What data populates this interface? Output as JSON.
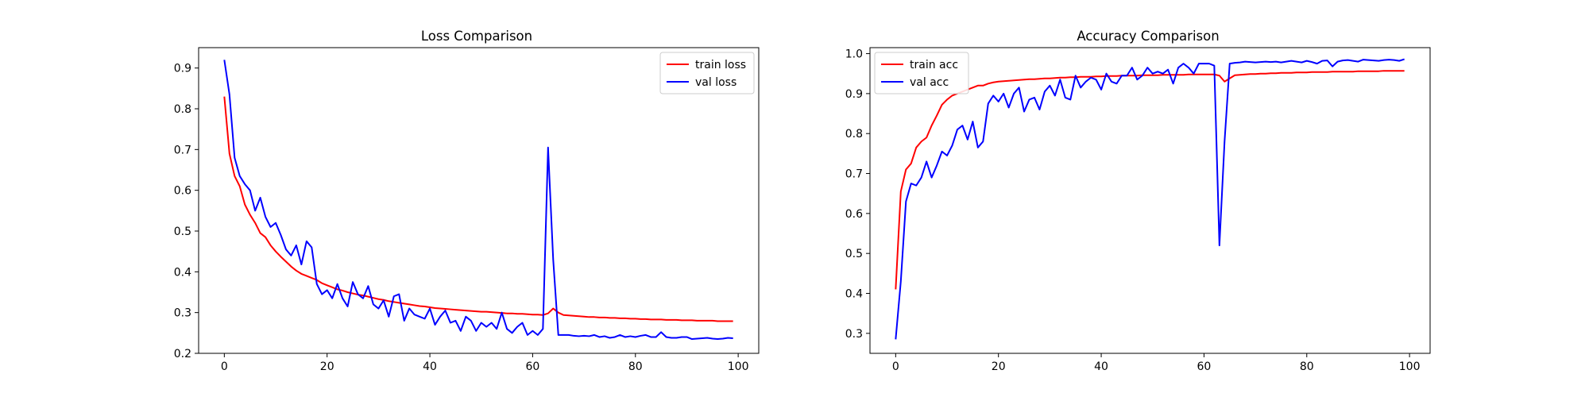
{
  "chart_data": [
    {
      "type": "line",
      "title": "Loss Comparison",
      "xlabel": "",
      "ylabel": "",
      "xlim": [
        -5,
        104
      ],
      "ylim": [
        0.2,
        0.95
      ],
      "xticks": [
        0,
        20,
        40,
        60,
        80,
        100
      ],
      "yticks": [
        0.2,
        0.3,
        0.4,
        0.5,
        0.6,
        0.7,
        0.8,
        0.9
      ],
      "ytick_decimals": 1,
      "legend": "top-right",
      "grid": false,
      "series": [
        {
          "name": "train loss",
          "color": "#ff0000",
          "values": [
            0.83,
            0.69,
            0.635,
            0.61,
            0.565,
            0.54,
            0.52,
            0.495,
            0.485,
            0.465,
            0.45,
            0.437,
            0.425,
            0.413,
            0.403,
            0.395,
            0.39,
            0.385,
            0.38,
            0.372,
            0.367,
            0.362,
            0.357,
            0.354,
            0.35,
            0.347,
            0.344,
            0.342,
            0.339,
            0.336,
            0.333,
            0.331,
            0.328,
            0.326,
            0.324,
            0.322,
            0.32,
            0.318,
            0.316,
            0.315,
            0.313,
            0.311,
            0.31,
            0.309,
            0.308,
            0.307,
            0.306,
            0.305,
            0.304,
            0.303,
            0.302,
            0.302,
            0.301,
            0.3,
            0.299,
            0.298,
            0.298,
            0.297,
            0.297,
            0.296,
            0.295,
            0.295,
            0.294,
            0.298,
            0.31,
            0.3,
            0.294,
            0.293,
            0.292,
            0.291,
            0.29,
            0.289,
            0.289,
            0.288,
            0.288,
            0.287,
            0.287,
            0.286,
            0.286,
            0.285,
            0.285,
            0.284,
            0.284,
            0.283,
            0.283,
            0.283,
            0.282,
            0.282,
            0.282,
            0.281,
            0.281,
            0.281,
            0.28,
            0.28,
            0.28,
            0.28,
            0.279,
            0.279,
            0.279,
            0.279
          ]
        },
        {
          "name": "val loss",
          "color": "#0000ff",
          "values": [
            0.92,
            0.835,
            0.68,
            0.635,
            0.615,
            0.6,
            0.55,
            0.582,
            0.535,
            0.51,
            0.52,
            0.49,
            0.455,
            0.44,
            0.465,
            0.418,
            0.475,
            0.46,
            0.37,
            0.345,
            0.355,
            0.335,
            0.37,
            0.335,
            0.315,
            0.375,
            0.345,
            0.335,
            0.365,
            0.32,
            0.31,
            0.33,
            0.29,
            0.34,
            0.345,
            0.28,
            0.31,
            0.295,
            0.29,
            0.285,
            0.31,
            0.27,
            0.29,
            0.305,
            0.275,
            0.28,
            0.255,
            0.29,
            0.28,
            0.255,
            0.275,
            0.265,
            0.275,
            0.26,
            0.3,
            0.26,
            0.25,
            0.265,
            0.275,
            0.245,
            0.255,
            0.245,
            0.26,
            0.705,
            0.43,
            0.245,
            0.245,
            0.245,
            0.243,
            0.242,
            0.243,
            0.242,
            0.245,
            0.24,
            0.242,
            0.238,
            0.24,
            0.245,
            0.24,
            0.242,
            0.24,
            0.243,
            0.245,
            0.24,
            0.24,
            0.252,
            0.24,
            0.238,
            0.238,
            0.24,
            0.24,
            0.235,
            0.236,
            0.237,
            0.238,
            0.236,
            0.235,
            0.236,
            0.238,
            0.237
          ]
        }
      ]
    },
    {
      "type": "line",
      "title": "Accuracy Comparison",
      "xlabel": "",
      "ylabel": "",
      "xlim": [
        -5,
        104
      ],
      "ylim": [
        0.25,
        1.015
      ],
      "xticks": [
        0,
        20,
        40,
        60,
        80,
        100
      ],
      "yticks": [
        0.3,
        0.4,
        0.5,
        0.6,
        0.7,
        0.8,
        0.9,
        1.0
      ],
      "ytick_decimals": 1,
      "legend": "top-left",
      "grid": false,
      "series": [
        {
          "name": "train acc",
          "color": "#ff0000",
          "values": [
            0.41,
            0.655,
            0.71,
            0.725,
            0.765,
            0.78,
            0.79,
            0.82,
            0.845,
            0.872,
            0.885,
            0.895,
            0.9,
            0.905,
            0.91,
            0.915,
            0.92,
            0.92,
            0.925,
            0.928,
            0.93,
            0.931,
            0.932,
            0.933,
            0.934,
            0.935,
            0.936,
            0.936,
            0.937,
            0.938,
            0.938,
            0.939,
            0.94,
            0.94,
            0.941,
            0.941,
            0.942,
            0.942,
            0.942,
            0.943,
            0.943,
            0.944,
            0.944,
            0.944,
            0.945,
            0.945,
            0.945,
            0.945,
            0.946,
            0.946,
            0.946,
            0.946,
            0.947,
            0.947,
            0.947,
            0.947,
            0.947,
            0.948,
            0.948,
            0.948,
            0.948,
            0.948,
            0.948,
            0.945,
            0.93,
            0.938,
            0.946,
            0.947,
            0.948,
            0.949,
            0.949,
            0.95,
            0.95,
            0.951,
            0.951,
            0.952,
            0.952,
            0.952,
            0.953,
            0.953,
            0.953,
            0.954,
            0.954,
            0.954,
            0.954,
            0.955,
            0.955,
            0.955,
            0.955,
            0.955,
            0.956,
            0.956,
            0.956,
            0.956,
            0.956,
            0.957,
            0.957,
            0.957,
            0.957,
            0.957
          ]
        },
        {
          "name": "val acc",
          "color": "#0000ff",
          "values": [
            0.285,
            0.43,
            0.63,
            0.675,
            0.67,
            0.69,
            0.73,
            0.69,
            0.72,
            0.755,
            0.745,
            0.77,
            0.81,
            0.82,
            0.785,
            0.83,
            0.765,
            0.78,
            0.875,
            0.895,
            0.88,
            0.9,
            0.865,
            0.9,
            0.915,
            0.855,
            0.885,
            0.89,
            0.86,
            0.905,
            0.92,
            0.895,
            0.935,
            0.89,
            0.885,
            0.945,
            0.915,
            0.93,
            0.94,
            0.935,
            0.91,
            0.95,
            0.93,
            0.925,
            0.945,
            0.945,
            0.965,
            0.935,
            0.945,
            0.965,
            0.95,
            0.955,
            0.95,
            0.96,
            0.925,
            0.965,
            0.975,
            0.965,
            0.95,
            0.975,
            0.975,
            0.975,
            0.97,
            0.52,
            0.78,
            0.975,
            0.977,
            0.978,
            0.98,
            0.979,
            0.978,
            0.979,
            0.98,
            0.979,
            0.98,
            0.978,
            0.98,
            0.982,
            0.98,
            0.978,
            0.982,
            0.979,
            0.975,
            0.982,
            0.983,
            0.968,
            0.98,
            0.983,
            0.984,
            0.982,
            0.98,
            0.985,
            0.984,
            0.983,
            0.982,
            0.984,
            0.985,
            0.984,
            0.982,
            0.986
          ]
        }
      ]
    }
  ]
}
